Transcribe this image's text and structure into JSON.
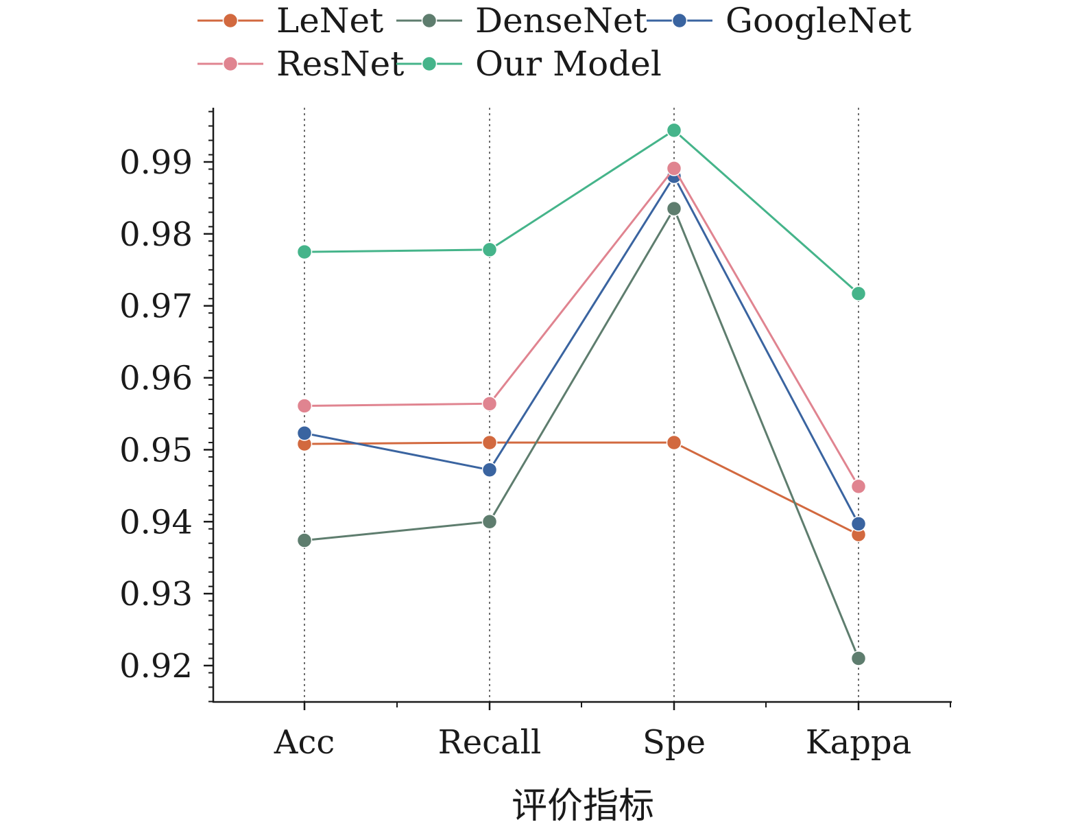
{
  "chart_data": {
    "type": "line",
    "categories": [
      "Acc",
      "Recall",
      "Spe",
      "Kappa"
    ],
    "xlabel": "评价指标",
    "ylabel": "",
    "ylim": [
      0.915,
      0.9975
    ],
    "yticks": [
      "0.92",
      "0.93",
      "0.94",
      "0.95",
      "0.96",
      "0.97",
      "0.98",
      "0.99"
    ],
    "vertical_grid": true,
    "grid_style": "dotted",
    "legend_position": "top",
    "series": [
      {
        "name": "LeNet",
        "color": "#D2693F",
        "values": [
          0.9508,
          0.951,
          0.951,
          0.9382
        ]
      },
      {
        "name": "DenseNet",
        "color": "#5E7D6E",
        "values": [
          0.9374,
          0.94,
          0.9835,
          0.921
        ]
      },
      {
        "name": "GoogleNet",
        "color": "#3A64A0",
        "values": [
          0.9523,
          0.9472,
          0.988,
          0.9397
        ]
      },
      {
        "name": "ResNet",
        "color": "#E08490",
        "values": [
          0.9561,
          0.9564,
          0.9891,
          0.9449
        ]
      },
      {
        "name": "Our Model",
        "color": "#45B48A",
        "values": [
          0.9775,
          0.9778,
          0.9944,
          0.9717
        ]
      }
    ]
  }
}
